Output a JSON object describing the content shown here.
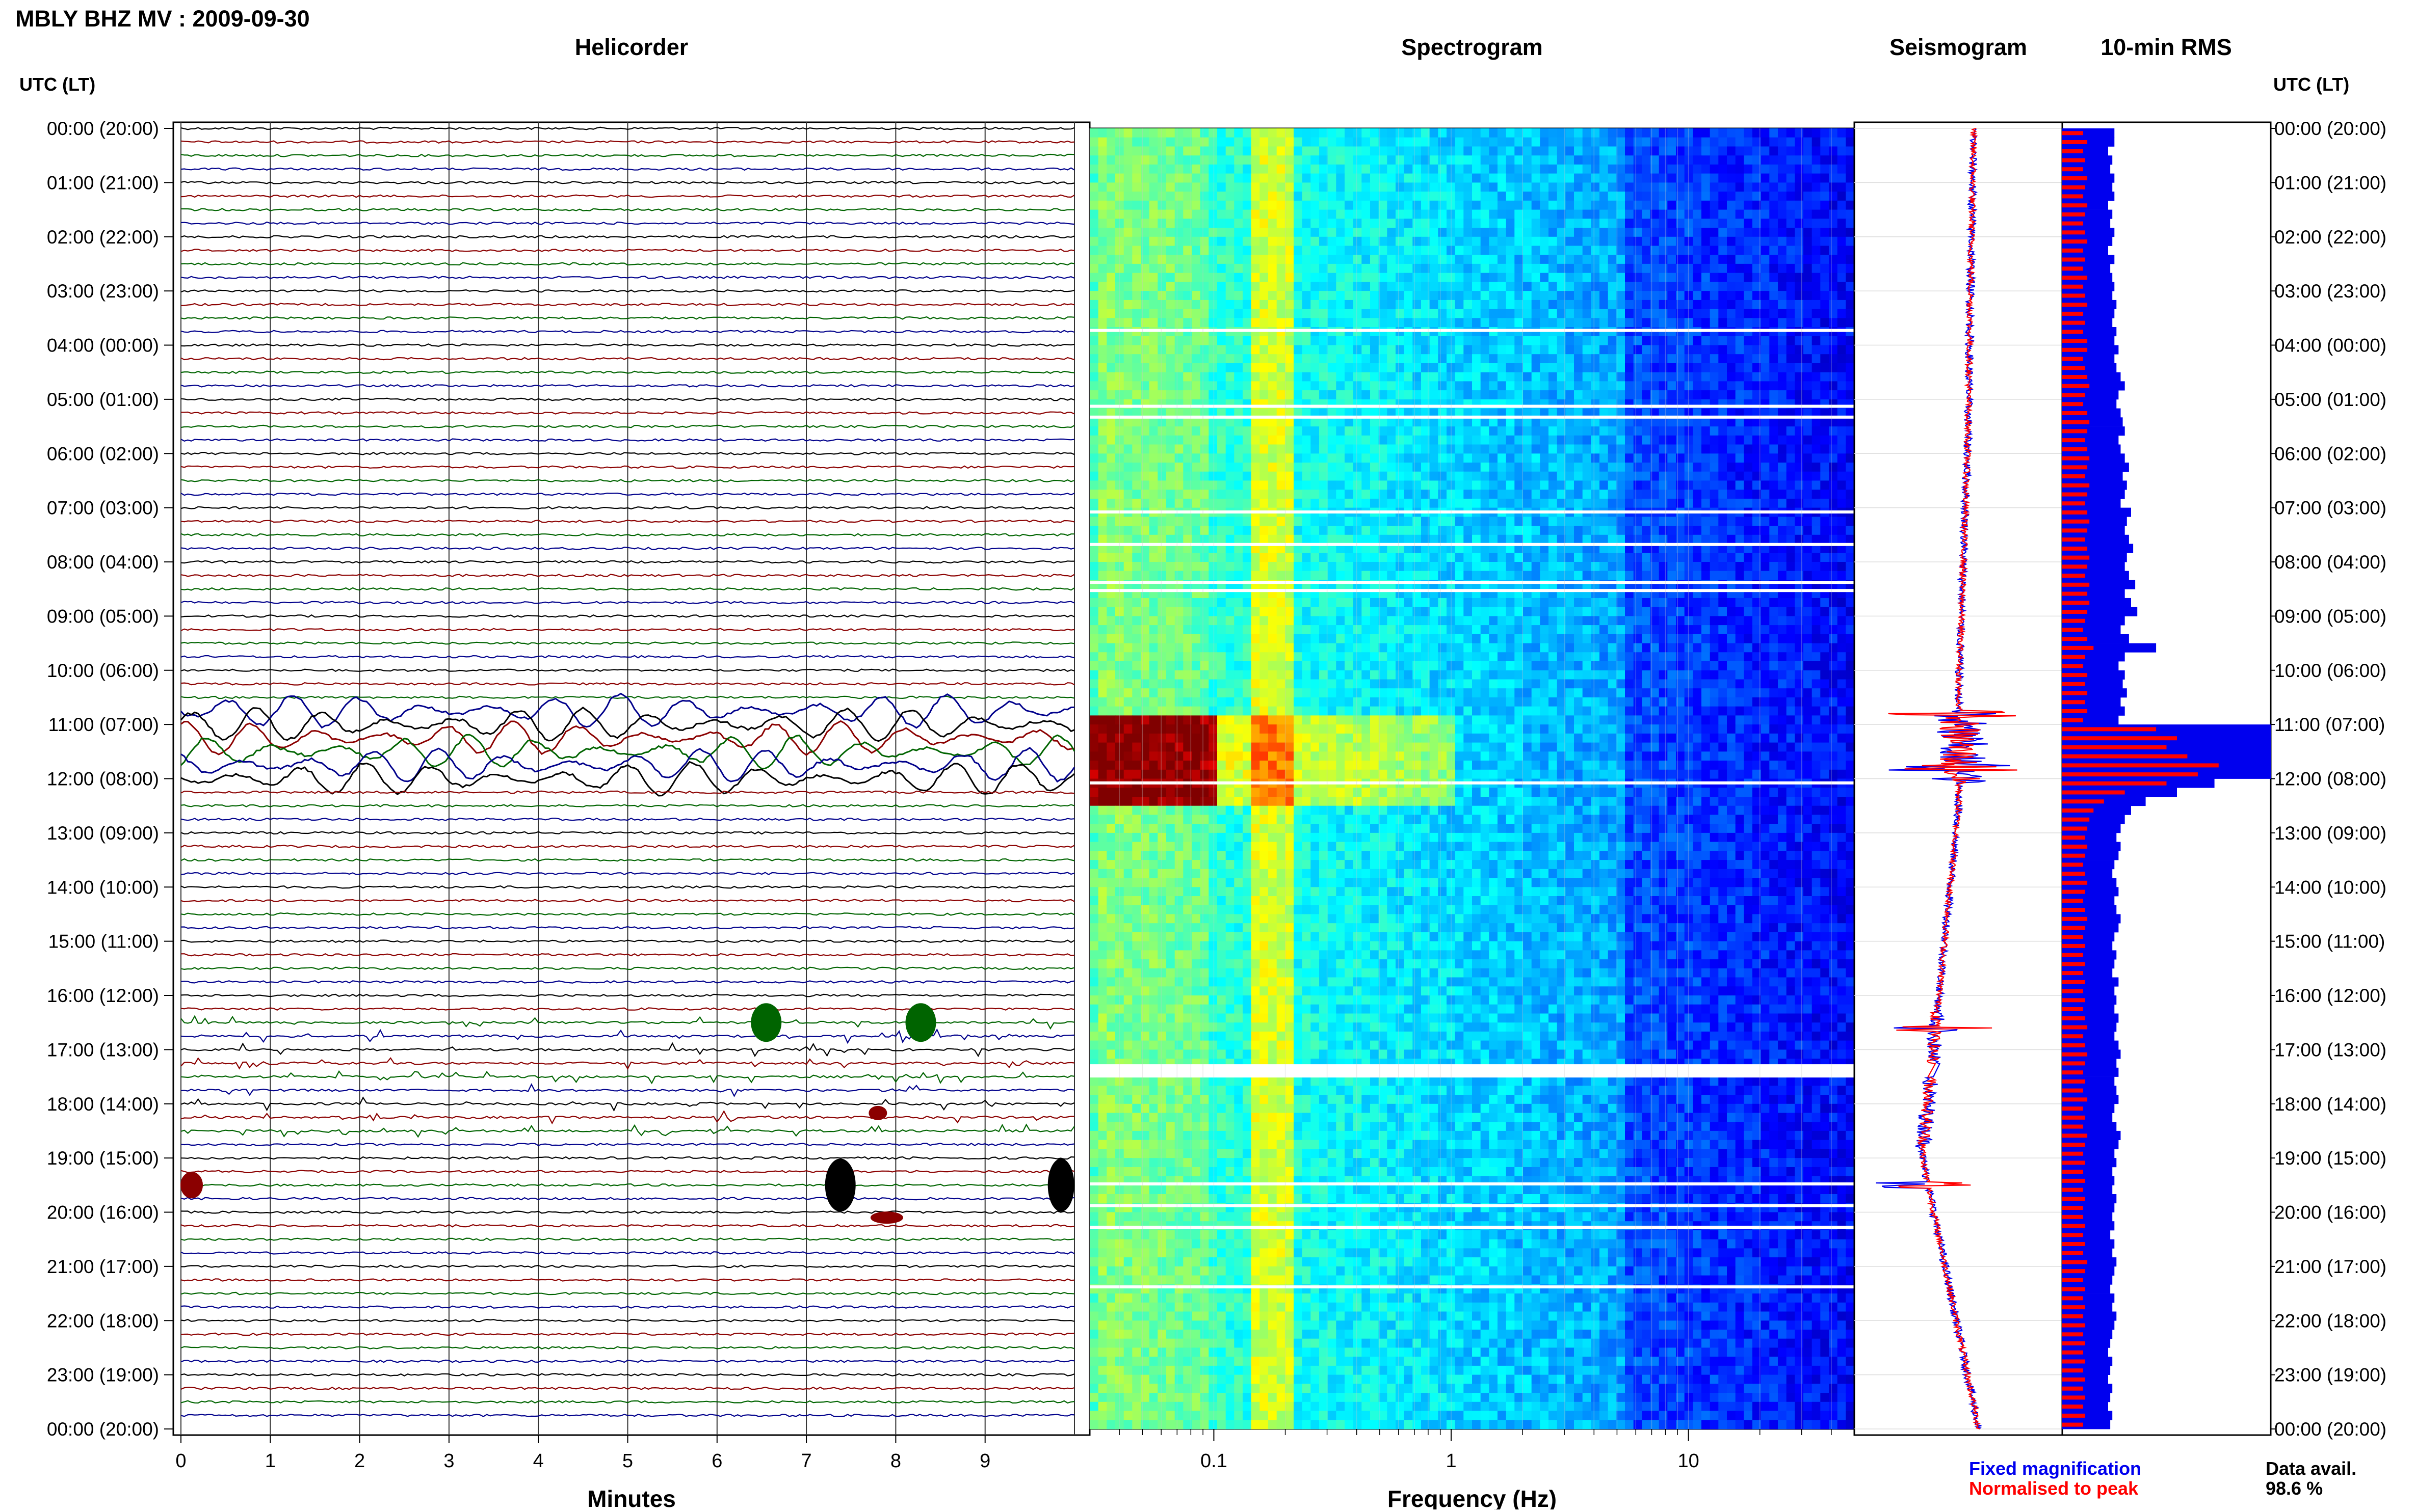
{
  "header": {
    "station_title": "MBLY BHZ MV : 2009-09-30",
    "panel_titles": {
      "helicorder": "Helicorder",
      "spectrogram": "Spectrogram",
      "seismogram": "Seismogram",
      "rms": "10-min RMS"
    },
    "utc_label_left": "UTC (LT)",
    "utc_label_right": "UTC (LT)"
  },
  "time_labels": [
    "00:00 (20:00)",
    "01:00 (21:00)",
    "02:00 (22:00)",
    "03:00 (23:00)",
    "04:00 (00:00)",
    "05:00 (01:00)",
    "06:00 (02:00)",
    "07:00 (03:00)",
    "08:00 (04:00)",
    "09:00 (05:00)",
    "10:00 (06:00)",
    "11:00 (07:00)",
    "12:00 (08:00)",
    "13:00 (09:00)",
    "14:00 (10:00)",
    "15:00 (11:00)",
    "16:00 (12:00)",
    "17:00 (13:00)",
    "18:00 (14:00)",
    "19:00 (15:00)",
    "20:00 (16:00)",
    "21:00 (17:00)",
    "22:00 (18:00)",
    "23:00 (19:00)",
    "00:00 (20:00)"
  ],
  "axes": {
    "minutes_ticks": [
      "0",
      "1",
      "2",
      "3",
      "4",
      "5",
      "6",
      "7",
      "8",
      "9"
    ],
    "minutes_label": "Minutes",
    "freq_ticks": [
      "0.1",
      "1",
      "10"
    ],
    "freq_label": "Frequency (Hz)"
  },
  "legend": {
    "fixed": "Fixed magnification",
    "normalised": "Normalised to peak",
    "fixed_color": "#0000ee",
    "normalised_color": "#ff0000"
  },
  "data_availability": {
    "label": "Data avail.",
    "value": "98.6 %"
  },
  "colors": {
    "trace_cycle": [
      "#000000",
      "#8b0000",
      "#006400",
      "#00008b"
    ],
    "spectrogram_low": "#0000a0",
    "spectrogram_high": "#c00000"
  },
  "chart_data": {
    "type": "heatmap",
    "title": "MBLY BHZ MV : 2009-09-30",
    "x_helicorder_range_minutes": [
      0,
      10
    ],
    "freq_range_hz": [
      0.03,
      50
    ],
    "freq_scale": "log",
    "y_range_hours_utc": [
      0,
      24
    ],
    "traces_per_hour": 4,
    "rms_10min": {
      "description_units": "relative",
      "fixed_magnification": [
        0.25,
        0.25,
        0.22,
        0.24,
        0.23,
        0.25,
        0.24,
        0.25,
        0.22,
        0.24,
        0.23,
        0.25,
        0.24,
        0.22,
        0.25,
        0.23,
        0.24,
        0.25,
        0.24,
        0.26,
        0.25,
        0.24,
        0.26,
        0.25,
        0.27,
        0.25,
        0.26,
        0.28,
        0.3,
        0.27,
        0.26,
        0.28,
        0.29,
        0.3,
        0.27,
        0.28,
        0.3,
        0.32,
        0.29,
        0.31,
        0.3,
        0.28,
        0.33,
        0.31,
        0.3,
        0.32,
        0.34,
        0.31,
        0.3,
        0.32,
        0.35,
        0.3,
        0.33,
        0.36,
        0.3,
        0.28,
        0.32,
        0.45,
        0.3,
        0.27,
        0.3,
        0.29,
        0.31,
        0.28,
        0.3,
        0.27,
        1.0,
        1.0,
        1.0,
        1.0,
        1.0,
        1.0,
        0.73,
        0.55,
        0.4,
        0.33,
        0.3,
        0.28,
        0.26,
        0.28,
        0.27,
        0.25,
        0.24,
        0.26,
        0.27,
        0.25,
        0.26,
        0.28,
        0.27,
        0.25,
        0.24,
        0.26,
        0.25,
        0.24,
        0.27,
        0.25,
        0.26,
        0.25,
        0.27,
        0.26,
        0.25,
        0.27,
        0.28,
        0.26,
        0.27,
        0.25,
        0.26,
        0.27,
        0.25,
        0.24,
        0.26,
        0.28,
        0.27,
        0.25,
        0.26,
        0.24,
        0.25,
        0.24,
        0.26,
        0.25,
        0.24,
        0.25,
        0.23,
        0.25,
        0.24,
        0.26,
        0.25,
        0.24,
        0.23,
        0.25,
        0.24,
        0.26,
        0.25,
        0.24,
        0.23,
        0.22,
        0.24,
        0.23,
        0.22,
        0.24,
        0.23,
        0.22,
        0.24,
        0.23
      ],
      "normalised_to_peak": [
        0.1,
        0.12,
        0.1,
        0.11,
        0.1,
        0.12,
        0.11,
        0.1,
        0.12,
        0.11,
        0.1,
        0.11,
        0.12,
        0.1,
        0.11,
        0.1,
        0.12,
        0.1,
        0.11,
        0.12,
        0.1,
        0.11,
        0.1,
        0.12,
        0.12,
        0.1,
        0.11,
        0.12,
        0.13,
        0.11,
        0.1,
        0.12,
        0.13,
        0.12,
        0.11,
        0.12,
        0.13,
        0.12,
        0.11,
        0.13,
        0.12,
        0.11,
        0.12,
        0.13,
        0.12,
        0.11,
        0.12,
        0.13,
        0.12,
        0.11,
        0.13,
        0.12,
        0.13,
        0.12,
        0.11,
        0.1,
        0.12,
        0.15,
        0.11,
        0.1,
        0.12,
        0.11,
        0.12,
        0.11,
        0.12,
        0.1,
        0.45,
        0.55,
        0.5,
        0.6,
        0.75,
        0.65,
        0.5,
        0.3,
        0.2,
        0.15,
        0.13,
        0.12,
        0.11,
        0.12,
        0.11,
        0.1,
        0.11,
        0.12,
        0.11,
        0.1,
        0.11,
        0.12,
        0.11,
        0.1,
        0.11,
        0.1,
        0.11,
        0.1,
        0.11,
        0.1,
        0.11,
        0.1,
        0.11,
        0.12,
        0.1,
        0.11,
        0.12,
        0.11,
        0.1,
        0.11,
        0.1,
        0.12,
        0.1,
        0.11,
        0.1,
        0.12,
        0.11,
        0.1,
        0.11,
        0.1,
        0.11,
        0.1,
        0.11,
        0.1,
        0.1,
        0.11,
        0.1,
        0.11,
        0.1,
        0.12,
        0.11,
        0.1,
        0.11,
        0.1,
        0.11,
        0.1,
        0.11,
        0.1,
        0.11,
        0.1,
        0.11,
        0.1,
        0.11,
        0.1,
        0.11,
        0.1,
        0.11,
        0.1
      ]
    },
    "notable_events": [
      {
        "utc": "10:45-12:10",
        "kind": "large long-period signal"
      },
      {
        "utc": "16:30-18:30",
        "kind": "spiky bursts"
      },
      {
        "utc": "19:30-20:00",
        "kind": "two large events"
      }
    ],
    "data_gap_utc": [
      "17:15-17:30"
    ]
  }
}
